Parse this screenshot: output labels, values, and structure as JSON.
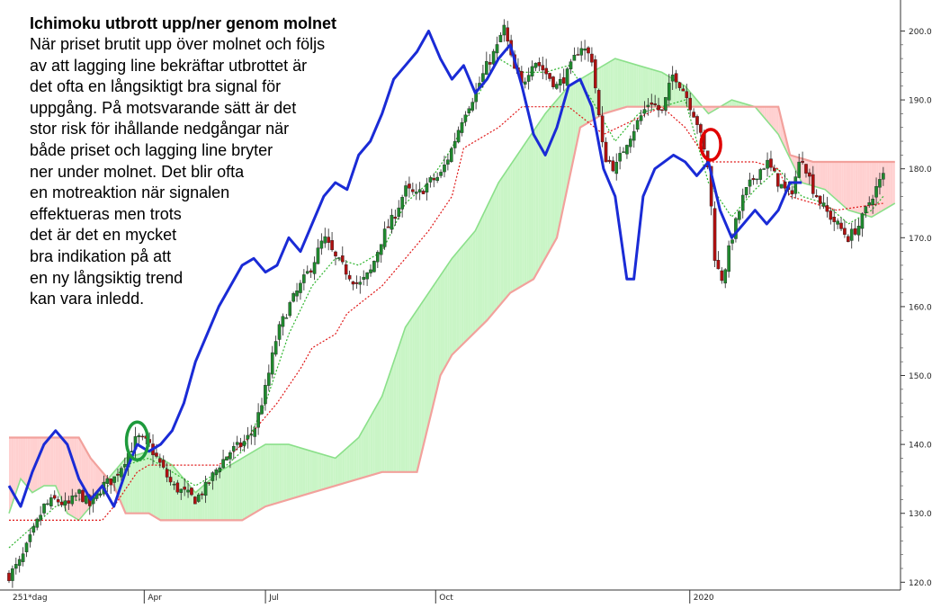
{
  "chart_data": {
    "type": "candlestick",
    "indicator": "Ichimoku",
    "title": "Ichimoku utbrott upp/ner genom molnet",
    "description_lines": [
      "När priset brutit upp över molnet och följs",
      "av att lagging line bekräftar utbrottet är",
      "det ofta en långsiktigt bra signal för",
      "uppgång. På motsvarande sätt är det",
      "stor risk för ihållande nedgångar när",
      "både priset och lagging line bryter",
      "ner under molnet. Det blir ofta",
      "en motreaktion när signalen",
      "effektueras men trots",
      "det är det en mycket",
      "bra indikation på att",
      "en ny långsiktig trend",
      "kan vara inledd."
    ],
    "period_label": "251*dag",
    "x_tick_labels": [
      "Apr",
      "Jul",
      "Oct",
      "2020"
    ],
    "y_tick_labels": [
      "120.0",
      "130.0",
      "140.0",
      "150.0",
      "160.0",
      "170.0",
      "180.0",
      "190.0",
      "200.0"
    ],
    "ylim": [
      119,
      204.5
    ],
    "grid": false,
    "colors": {
      "up_candle": "#1f8a2e",
      "down_candle": "#b01010",
      "lagging_line": "#1a2bd6",
      "conversion_line": "#2fb52f",
      "base_line": "#e01818",
      "cloud_bullish": "#c9f5c6",
      "cloud_bearish": "#ffd0d0",
      "span_a": "#8be08a",
      "span_b": "#f2a19c",
      "bullish_marker": "#1e9a3c",
      "bearish_marker": "#e00000"
    },
    "series": {
      "close": [
        {
          "x": 0,
          "y": 121
        },
        {
          "x": 5,
          "y": 123
        },
        {
          "x": 10,
          "y": 127
        },
        {
          "x": 15,
          "y": 131
        },
        {
          "x": 20,
          "y": 132
        },
        {
          "x": 25,
          "y": 131
        },
        {
          "x": 30,
          "y": 133
        },
        {
          "x": 35,
          "y": 131
        },
        {
          "x": 40,
          "y": 134
        },
        {
          "x": 45,
          "y": 135
        },
        {
          "x": 50,
          "y": 138
        },
        {
          "x": 55,
          "y": 141
        },
        {
          "x": 60,
          "y": 140
        },
        {
          "x": 65,
          "y": 137
        },
        {
          "x": 70,
          "y": 134
        },
        {
          "x": 75,
          "y": 133
        },
        {
          "x": 80,
          "y": 132
        },
        {
          "x": 85,
          "y": 134
        },
        {
          "x": 90,
          "y": 137
        },
        {
          "x": 95,
          "y": 139
        },
        {
          "x": 100,
          "y": 140
        },
        {
          "x": 105,
          "y": 142
        },
        {
          "x": 110,
          "y": 148
        },
        {
          "x": 115,
          "y": 156
        },
        {
          "x": 120,
          "y": 160
        },
        {
          "x": 125,
          "y": 163
        },
        {
          "x": 130,
          "y": 166
        },
        {
          "x": 135,
          "y": 170
        },
        {
          "x": 140,
          "y": 167
        },
        {
          "x": 145,
          "y": 165
        },
        {
          "x": 150,
          "y": 163
        },
        {
          "x": 155,
          "y": 165
        },
        {
          "x": 160,
          "y": 170
        },
        {
          "x": 165,
          "y": 173
        },
        {
          "x": 170,
          "y": 177
        },
        {
          "x": 175,
          "y": 176
        },
        {
          "x": 180,
          "y": 178
        },
        {
          "x": 185,
          "y": 179
        },
        {
          "x": 190,
          "y": 183
        },
        {
          "x": 195,
          "y": 188
        },
        {
          "x": 200,
          "y": 191
        },
        {
          "x": 205,
          "y": 195
        },
        {
          "x": 210,
          "y": 198
        },
        {
          "x": 212,
          "y": 201
        },
        {
          "x": 216,
          "y": 195
        },
        {
          "x": 220,
          "y": 192
        },
        {
          "x": 225,
          "y": 196
        },
        {
          "x": 230,
          "y": 194
        },
        {
          "x": 235,
          "y": 192
        },
        {
          "x": 240,
          "y": 194
        },
        {
          "x": 245,
          "y": 198
        },
        {
          "x": 250,
          "y": 196
        },
        {
          "x": 255,
          "y": 182
        },
        {
          "x": 260,
          "y": 180
        },
        {
          "x": 265,
          "y": 184
        },
        {
          "x": 270,
          "y": 187
        },
        {
          "x": 275,
          "y": 190
        },
        {
          "x": 280,
          "y": 188
        },
        {
          "x": 285,
          "y": 194
        },
        {
          "x": 290,
          "y": 191
        },
        {
          "x": 295,
          "y": 187
        },
        {
          "x": 300,
          "y": 180
        },
        {
          "x": 303,
          "y": 166
        },
        {
          "x": 306,
          "y": 164
        },
        {
          "x": 310,
          "y": 170
        },
        {
          "x": 315,
          "y": 176
        },
        {
          "x": 320,
          "y": 179
        },
        {
          "x": 325,
          "y": 181
        },
        {
          "x": 330,
          "y": 178
        },
        {
          "x": 335,
          "y": 176
        },
        {
          "x": 340,
          "y": 182
        },
        {
          "x": 345,
          "y": 177
        },
        {
          "x": 350,
          "y": 174
        },
        {
          "x": 355,
          "y": 172
        },
        {
          "x": 360,
          "y": 170
        },
        {
          "x": 365,
          "y": 172
        },
        {
          "x": 370,
          "y": 176
        },
        {
          "x": 375,
          "y": 179
        }
      ],
      "lagging_line": [
        {
          "x": 0,
          "y": 134
        },
        {
          "x": 5,
          "y": 131
        },
        {
          "x": 10,
          "y": 136
        },
        {
          "x": 15,
          "y": 140
        },
        {
          "x": 20,
          "y": 142
        },
        {
          "x": 25,
          "y": 140
        },
        {
          "x": 30,
          "y": 135
        },
        {
          "x": 35,
          "y": 132
        },
        {
          "x": 40,
          "y": 134
        },
        {
          "x": 45,
          "y": 131
        },
        {
          "x": 50,
          "y": 136
        },
        {
          "x": 55,
          "y": 140
        },
        {
          "x": 60,
          "y": 139
        },
        {
          "x": 65,
          "y": 140
        },
        {
          "x": 70,
          "y": 142
        },
        {
          "x": 75,
          "y": 146
        },
        {
          "x": 80,
          "y": 152
        },
        {
          "x": 85,
          "y": 156
        },
        {
          "x": 90,
          "y": 160
        },
        {
          "x": 95,
          "y": 163
        },
        {
          "x": 100,
          "y": 166
        },
        {
          "x": 105,
          "y": 167
        },
        {
          "x": 110,
          "y": 165
        },
        {
          "x": 115,
          "y": 166
        },
        {
          "x": 120,
          "y": 170
        },
        {
          "x": 125,
          "y": 168
        },
        {
          "x": 130,
          "y": 172
        },
        {
          "x": 135,
          "y": 176
        },
        {
          "x": 140,
          "y": 178
        },
        {
          "x": 145,
          "y": 177
        },
        {
          "x": 150,
          "y": 182
        },
        {
          "x": 155,
          "y": 184
        },
        {
          "x": 160,
          "y": 188
        },
        {
          "x": 165,
          "y": 193
        },
        {
          "x": 170,
          "y": 195
        },
        {
          "x": 175,
          "y": 197
        },
        {
          "x": 180,
          "y": 200
        },
        {
          "x": 185,
          "y": 196
        },
        {
          "x": 190,
          "y": 193
        },
        {
          "x": 195,
          "y": 195
        },
        {
          "x": 200,
          "y": 191
        },
        {
          "x": 205,
          "y": 193
        },
        {
          "x": 210,
          "y": 196
        },
        {
          "x": 215,
          "y": 198
        },
        {
          "x": 220,
          "y": 192
        },
        {
          "x": 225,
          "y": 185
        },
        {
          "x": 230,
          "y": 182
        },
        {
          "x": 235,
          "y": 186
        },
        {
          "x": 240,
          "y": 192
        },
        {
          "x": 245,
          "y": 193
        },
        {
          "x": 250,
          "y": 189
        },
        {
          "x": 255,
          "y": 180
        },
        {
          "x": 260,
          "y": 176
        },
        {
          "x": 265,
          "y": 164
        },
        {
          "x": 268,
          "y": 164
        },
        {
          "x": 272,
          "y": 176
        },
        {
          "x": 277,
          "y": 180
        },
        {
          "x": 285,
          "y": 182
        },
        {
          "x": 290,
          "y": 181
        },
        {
          "x": 295,
          "y": 179
        },
        {
          "x": 300,
          "y": 181
        },
        {
          "x": 305,
          "y": 174
        },
        {
          "x": 310,
          "y": 170
        },
        {
          "x": 315,
          "y": 172
        },
        {
          "x": 320,
          "y": 174
        },
        {
          "x": 325,
          "y": 172
        },
        {
          "x": 330,
          "y": 174
        },
        {
          "x": 335,
          "y": 178
        },
        {
          "x": 340,
          "y": 178
        }
      ],
      "conversion_line": [
        {
          "x": 0,
          "y": 125
        },
        {
          "x": 10,
          "y": 128
        },
        {
          "x": 20,
          "y": 131
        },
        {
          "x": 30,
          "y": 132
        },
        {
          "x": 40,
          "y": 133
        },
        {
          "x": 50,
          "y": 137
        },
        {
          "x": 60,
          "y": 138
        },
        {
          "x": 70,
          "y": 136
        },
        {
          "x": 80,
          "y": 134
        },
        {
          "x": 90,
          "y": 136
        },
        {
          "x": 100,
          "y": 139
        },
        {
          "x": 110,
          "y": 146
        },
        {
          "x": 120,
          "y": 156
        },
        {
          "x": 130,
          "y": 163
        },
        {
          "x": 140,
          "y": 167
        },
        {
          "x": 150,
          "y": 166
        },
        {
          "x": 160,
          "y": 168
        },
        {
          "x": 170,
          "y": 175
        },
        {
          "x": 180,
          "y": 178
        },
        {
          "x": 190,
          "y": 183
        },
        {
          "x": 200,
          "y": 190
        },
        {
          "x": 210,
          "y": 196
        },
        {
          "x": 220,
          "y": 194
        },
        {
          "x": 230,
          "y": 194
        },
        {
          "x": 240,
          "y": 195
        },
        {
          "x": 250,
          "y": 190
        },
        {
          "x": 260,
          "y": 184
        },
        {
          "x": 270,
          "y": 188
        },
        {
          "x": 280,
          "y": 189
        },
        {
          "x": 290,
          "y": 190
        },
        {
          "x": 300,
          "y": 178
        },
        {
          "x": 310,
          "y": 173
        },
        {
          "x": 320,
          "y": 177
        },
        {
          "x": 330,
          "y": 180
        },
        {
          "x": 340,
          "y": 176
        },
        {
          "x": 350,
          "y": 175
        },
        {
          "x": 360,
          "y": 172
        },
        {
          "x": 370,
          "y": 174
        },
        {
          "x": 375,
          "y": 176
        }
      ],
      "base_line": [
        {
          "x": 0,
          "y": 129
        },
        {
          "x": 40,
          "y": 129
        },
        {
          "x": 45,
          "y": 131
        },
        {
          "x": 55,
          "y": 136
        },
        {
          "x": 60,
          "y": 137
        },
        {
          "x": 90,
          "y": 137
        },
        {
          "x": 100,
          "y": 140
        },
        {
          "x": 115,
          "y": 146
        },
        {
          "x": 125,
          "y": 151
        },
        {
          "x": 130,
          "y": 154
        },
        {
          "x": 140,
          "y": 156
        },
        {
          "x": 145,
          "y": 159
        },
        {
          "x": 160,
          "y": 163
        },
        {
          "x": 170,
          "y": 167
        },
        {
          "x": 180,
          "y": 171
        },
        {
          "x": 190,
          "y": 176
        },
        {
          "x": 195,
          "y": 183
        },
        {
          "x": 210,
          "y": 186
        },
        {
          "x": 220,
          "y": 189
        },
        {
          "x": 240,
          "y": 189
        },
        {
          "x": 255,
          "y": 185
        },
        {
          "x": 280,
          "y": 189
        },
        {
          "x": 290,
          "y": 186
        },
        {
          "x": 300,
          "y": 181
        },
        {
          "x": 320,
          "y": 181
        },
        {
          "x": 330,
          "y": 180
        },
        {
          "x": 335,
          "y": 176
        },
        {
          "x": 345,
          "y": 175
        },
        {
          "x": 355,
          "y": 174
        },
        {
          "x": 375,
          "y": 175
        }
      ],
      "span_a": [
        {
          "x": 0,
          "y": 130
        },
        {
          "x": 5,
          "y": 135
        },
        {
          "x": 10,
          "y": 133
        },
        {
          "x": 15,
          "y": 134
        },
        {
          "x": 20,
          "y": 134
        },
        {
          "x": 25,
          "y": 130
        },
        {
          "x": 30,
          "y": 129
        },
        {
          "x": 35,
          "y": 131
        },
        {
          "x": 40,
          "y": 134
        },
        {
          "x": 45,
          "y": 136
        },
        {
          "x": 50,
          "y": 138
        },
        {
          "x": 60,
          "y": 139
        },
        {
          "x": 70,
          "y": 137
        },
        {
          "x": 80,
          "y": 133
        },
        {
          "x": 90,
          "y": 136
        },
        {
          "x": 100,
          "y": 138
        },
        {
          "x": 110,
          "y": 140
        },
        {
          "x": 120,
          "y": 140
        },
        {
          "x": 130,
          "y": 139
        },
        {
          "x": 140,
          "y": 138
        },
        {
          "x": 150,
          "y": 141
        },
        {
          "x": 160,
          "y": 147
        },
        {
          "x": 170,
          "y": 157
        },
        {
          "x": 180,
          "y": 162
        },
        {
          "x": 190,
          "y": 167
        },
        {
          "x": 200,
          "y": 171
        },
        {
          "x": 210,
          "y": 178
        },
        {
          "x": 220,
          "y": 183
        },
        {
          "x": 230,
          "y": 188
        },
        {
          "x": 240,
          "y": 192
        },
        {
          "x": 250,
          "y": 194
        },
        {
          "x": 260,
          "y": 196
        },
        {
          "x": 270,
          "y": 195
        },
        {
          "x": 280,
          "y": 194
        },
        {
          "x": 290,
          "y": 192
        },
        {
          "x": 300,
          "y": 188
        },
        {
          "x": 310,
          "y": 190
        },
        {
          "x": 320,
          "y": 189
        },
        {
          "x": 330,
          "y": 185
        },
        {
          "x": 340,
          "y": 178
        },
        {
          "x": 350,
          "y": 177
        },
        {
          "x": 360,
          "y": 174
        },
        {
          "x": 370,
          "y": 173
        },
        {
          "x": 380,
          "y": 175
        }
      ],
      "span_b": [
        {
          "x": 0,
          "y": 141
        },
        {
          "x": 30,
          "y": 141
        },
        {
          "x": 35,
          "y": 138
        },
        {
          "x": 45,
          "y": 134
        },
        {
          "x": 50,
          "y": 130
        },
        {
          "x": 60,
          "y": 130
        },
        {
          "x": 65,
          "y": 129
        },
        {
          "x": 100,
          "y": 129
        },
        {
          "x": 110,
          "y": 131
        },
        {
          "x": 130,
          "y": 133
        },
        {
          "x": 140,
          "y": 134
        },
        {
          "x": 150,
          "y": 135
        },
        {
          "x": 160,
          "y": 136
        },
        {
          "x": 175,
          "y": 136
        },
        {
          "x": 185,
          "y": 150
        },
        {
          "x": 190,
          "y": 153
        },
        {
          "x": 205,
          "y": 158
        },
        {
          "x": 215,
          "y": 162
        },
        {
          "x": 225,
          "y": 164
        },
        {
          "x": 235,
          "y": 170
        },
        {
          "x": 245,
          "y": 186
        },
        {
          "x": 255,
          "y": 188
        },
        {
          "x": 265,
          "y": 189
        },
        {
          "x": 280,
          "y": 189
        },
        {
          "x": 290,
          "y": 189
        },
        {
          "x": 300,
          "y": 189
        },
        {
          "x": 315,
          "y": 189
        },
        {
          "x": 325,
          "y": 189
        },
        {
          "x": 330,
          "y": 189
        },
        {
          "x": 335,
          "y": 182
        },
        {
          "x": 345,
          "y": 181
        },
        {
          "x": 380,
          "y": 181
        }
      ]
    },
    "annotations": [
      {
        "type": "ellipse",
        "label": "bullish breakout",
        "x": 55,
        "y": 140.5
      },
      {
        "type": "ellipse",
        "label": "bearish breakout",
        "x": 301,
        "y": 183.5
      }
    ]
  }
}
